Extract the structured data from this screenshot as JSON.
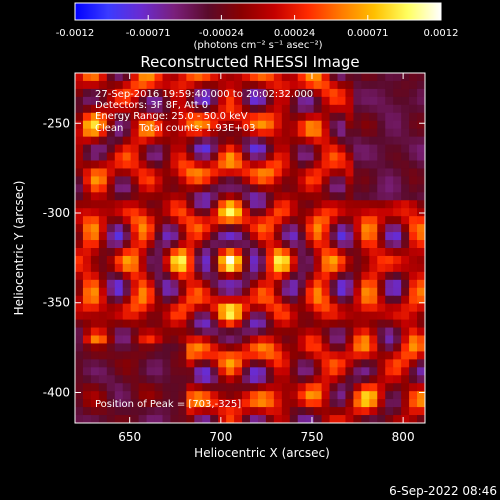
{
  "colorbar": {
    "ticks": [
      "-0.0012",
      "-0.00071",
      "-0.00024",
      "0.00024",
      "0.00071",
      "0.0012"
    ],
    "units": "(photons cm⁻² s⁻¹ asec⁻²)",
    "colormap": [
      "#0000ff",
      "#3b3bff",
      "#6a2bd0",
      "#7a1f7a",
      "#5a0a2a",
      "#8a0000",
      "#c40000",
      "#ff2a00",
      "#ff7a00",
      "#ffc000",
      "#ffff60",
      "#ffffff"
    ]
  },
  "chart_data": {
    "type": "heatmap",
    "title": "Reconstructed RHESSI Image",
    "xlabel": "Heliocentric X (arcsec)",
    "ylabel": "Heliocentric Y (arcsec)",
    "xlim": [
      620,
      812
    ],
    "ylim": [
      -417,
      -222
    ],
    "xticks": [
      "650",
      "700",
      "750",
      "800"
    ],
    "xtick_values": [
      650,
      700,
      750,
      800
    ],
    "yticks": [
      "-250",
      "-300",
      "-350",
      "-400"
    ],
    "ytick_values": [
      -250,
      -300,
      -350,
      -400
    ],
    "grid": false,
    "peak_position": [
      703,
      -325
    ],
    "annotations": [
      "27-Sep-2016 19:59:40.000 to 20:02:32.000",
      "Detectors: 3F 8F, Att 0",
      "Energy Range: 25.0 - 50.0 keV",
      "Clean     Total counts: 1.93E+03"
    ],
    "peak_text": "Position of Peak = [703,-325]",
    "value_range": [
      -0.0012,
      0.0012
    ]
  },
  "footer": {
    "timestamp": "6-Sep-2022 08:46"
  }
}
